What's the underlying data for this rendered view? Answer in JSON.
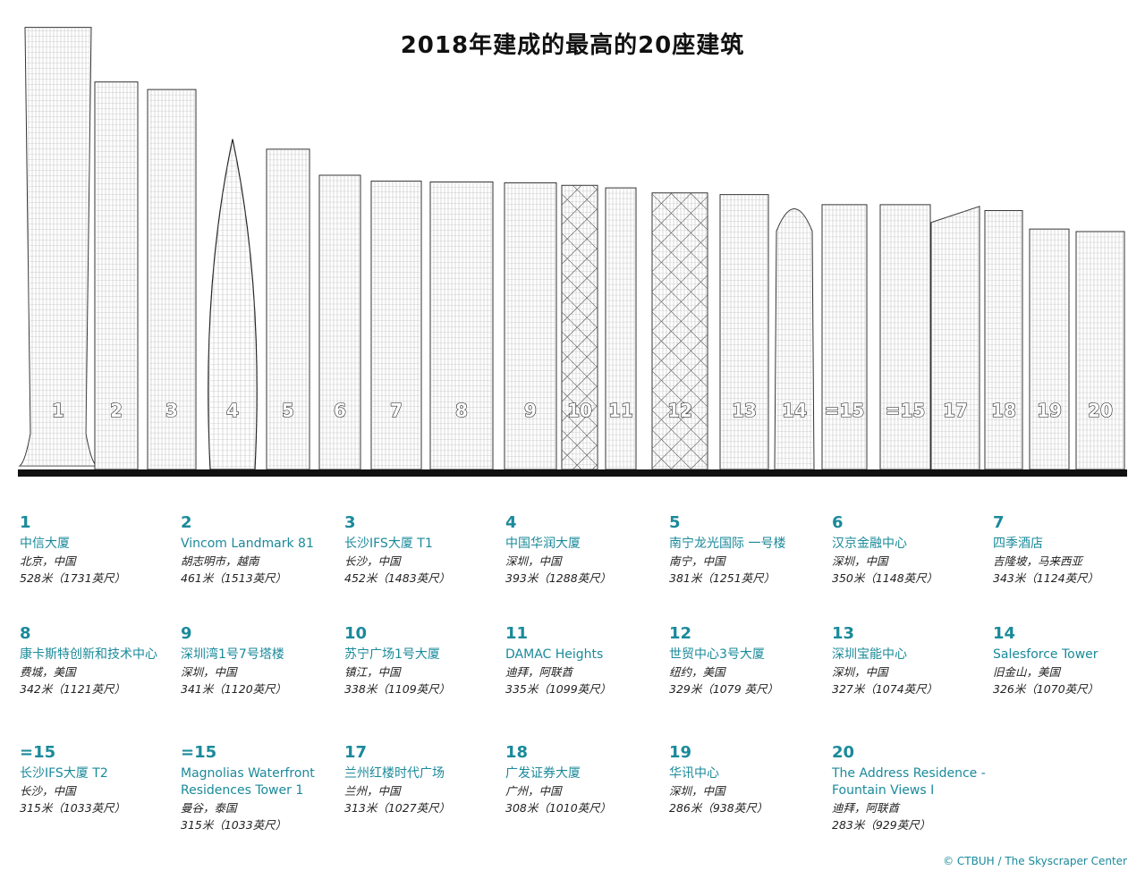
{
  "title": "2018年建成的最高的20座建筑",
  "credit": "© CTBUH / The Skyscraper Center",
  "colors": {
    "accent": "#1a8a9a",
    "ground": "#111111"
  },
  "buildings": [
    {
      "rank": "1",
      "name": "中信大厦",
      "location": "北京，中国",
      "height_text": "528米（1731英尺）",
      "height_m": 528
    },
    {
      "rank": "2",
      "name": "Vincom Landmark 81",
      "location": "胡志明市，越南",
      "height_text": "461米（1513英尺）",
      "height_m": 461
    },
    {
      "rank": "3",
      "name": "长沙IFS大厦 T1",
      "location": "长沙，中国",
      "height_text": "452米（1483英尺）",
      "height_m": 452
    },
    {
      "rank": "4",
      "name": "中国华润大厦",
      "location": "深圳，中国",
      "height_text": "393米（1288英尺）",
      "height_m": 393
    },
    {
      "rank": "5",
      "name": "南宁龙光国际 一号楼",
      "location": "南宁，中国",
      "height_text": "381米（1251英尺）",
      "height_m": 381
    },
    {
      "rank": "6",
      "name": "汉京金融中心",
      "location": "深圳，中国",
      "height_text": "350米（1148英尺）",
      "height_m": 350
    },
    {
      "rank": "7",
      "name": "四季酒店",
      "location": "吉隆坡，马来西亚",
      "height_text": "343米（1124英尺）",
      "height_m": 343
    },
    {
      "rank": "8",
      "name": "康卡斯特创新和技术中心",
      "location": "费城，美国",
      "height_text": "342米（1121英尺）",
      "height_m": 342
    },
    {
      "rank": "9",
      "name": "深圳湾1号7号塔楼",
      "location": "深圳，中国",
      "height_text": "341米（1120英尺）",
      "height_m": 341
    },
    {
      "rank": "10",
      "name": "苏宁广场1号大厦",
      "location": "镇江，中国",
      "height_text": "338米（1109英尺）",
      "height_m": 338
    },
    {
      "rank": "11",
      "name": "DAMAC Heights",
      "location": "迪拜，阿联酋",
      "height_text": "335米（1099英尺）",
      "height_m": 335
    },
    {
      "rank": "12",
      "name": "世贸中心3号大厦",
      "location": "纽约，美国",
      "height_text": "329米（1079 英尺）",
      "height_m": 329
    },
    {
      "rank": "13",
      "name": "深圳宝能中心",
      "location": "深圳，中国",
      "height_text": "327米（1074英尺）",
      "height_m": 327
    },
    {
      "rank": "14",
      "name": "Salesforce Tower",
      "location": "旧金山，美国",
      "height_text": "326米（1070英尺）",
      "height_m": 326
    },
    {
      "rank": "=15",
      "name": "长沙IFS大厦 T2",
      "location": "长沙，中国",
      "height_text": "315米（1033英尺）",
      "height_m": 315
    },
    {
      "rank": "=15",
      "name": "Magnolias Waterfront Residences Tower 1",
      "location": "曼谷，泰国",
      "height_text": "315米（1033英尺）",
      "height_m": 315
    },
    {
      "rank": "17",
      "name": "兰州红楼时代广场",
      "location": "兰州，中国",
      "height_text": "313米（1027英尺）",
      "height_m": 313
    },
    {
      "rank": "18",
      "name": "广发证券大厦",
      "location": "广州，中国",
      "height_text": "308米（1010英尺）",
      "height_m": 308
    },
    {
      "rank": "19",
      "name": "华讯中心",
      "location": "深圳，中国",
      "height_text": "286米（938英尺）",
      "height_m": 286
    },
    {
      "rank": "20",
      "name": "The Address Residence - Fountain Views I",
      "location": "迪拜，阿联酋",
      "height_text": "283米（929英尺）",
      "height_m": 283
    }
  ]
}
